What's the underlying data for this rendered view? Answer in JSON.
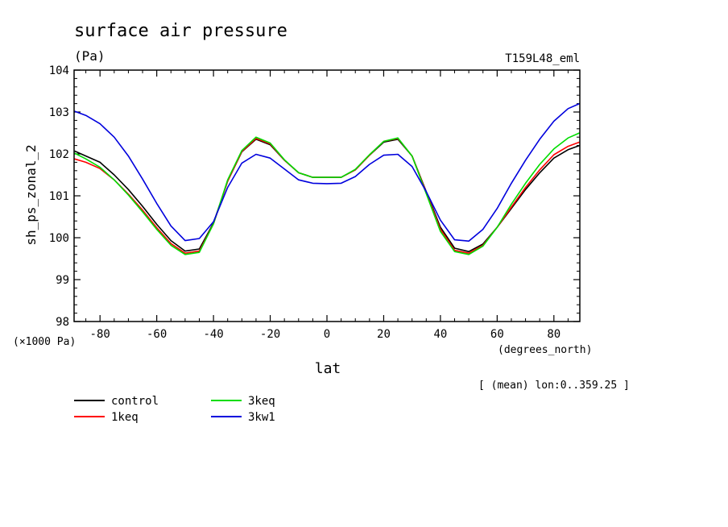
{
  "chart_data": {
    "type": "line",
    "title": "surface air pressure",
    "units": "(Pa)",
    "run_label": "T159L48_eml",
    "ylabel": "sh_ps_zonal_2",
    "yscale_note": "(×1000 Pa)",
    "xlabel": "lat",
    "xunits": "(degrees_north)",
    "averaging_note": "[ (mean) lon:0..359.25 ]",
    "xlim": [
      -89.14,
      89.14
    ],
    "ylim": [
      98,
      104
    ],
    "x_ticks": [
      -80,
      -60,
      -40,
      -20,
      0,
      20,
      40,
      60,
      80
    ],
    "y_ticks": [
      98,
      99,
      100,
      101,
      102,
      103,
      104
    ],
    "grid": false,
    "legend_position": "bottom-left",
    "x": [
      -89,
      -85,
      -80,
      -75,
      -70,
      -65,
      -60,
      -55,
      -50,
      -45,
      -40,
      -35,
      -30,
      -25,
      -20,
      -15,
      -10,
      -5,
      0,
      5,
      10,
      15,
      20,
      25,
      30,
      35,
      40,
      45,
      50,
      55,
      60,
      65,
      70,
      75,
      80,
      85,
      89
    ],
    "series": [
      {
        "name": "control",
        "color": "#000000",
        "values": [
          102.07,
          101.95,
          101.8,
          101.5,
          101.15,
          100.75,
          100.32,
          99.93,
          99.68,
          99.73,
          100.35,
          101.35,
          102.05,
          102.35,
          102.22,
          101.85,
          101.55,
          101.44,
          101.44,
          101.44,
          101.62,
          101.97,
          102.28,
          102.35,
          101.95,
          101.1,
          100.25,
          99.75,
          99.67,
          99.85,
          100.25,
          100.7,
          101.15,
          101.55,
          101.9,
          102.1,
          102.2
        ]
      },
      {
        "name": "1keq",
        "color": "#ff0000",
        "values": [
          101.88,
          101.8,
          101.65,
          101.38,
          101.04,
          100.66,
          100.24,
          99.86,
          99.63,
          99.68,
          100.33,
          101.35,
          102.06,
          102.37,
          102.24,
          101.85,
          101.55,
          101.44,
          101.44,
          101.44,
          101.62,
          101.97,
          102.3,
          102.37,
          101.95,
          101.08,
          100.2,
          99.7,
          99.63,
          99.82,
          100.25,
          100.73,
          101.2,
          101.62,
          101.98,
          102.18,
          102.28
        ]
      },
      {
        "name": "3keq",
        "color": "#00dd00",
        "values": [
          102.02,
          101.88,
          101.68,
          101.38,
          101.02,
          100.62,
          100.2,
          99.82,
          99.6,
          99.65,
          100.33,
          101.38,
          102.08,
          102.4,
          102.26,
          101.86,
          101.55,
          101.44,
          101.44,
          101.44,
          101.63,
          101.98,
          102.3,
          102.38,
          101.95,
          101.05,
          100.15,
          99.67,
          99.6,
          99.8,
          100.25,
          100.8,
          101.3,
          101.75,
          102.12,
          102.38,
          102.5
        ]
      },
      {
        "name": "3kw1",
        "color": "#0000dd",
        "values": [
          103.02,
          102.92,
          102.72,
          102.4,
          101.95,
          101.4,
          100.82,
          100.28,
          99.93,
          99.98,
          100.38,
          101.2,
          101.78,
          101.99,
          101.9,
          101.64,
          101.38,
          101.3,
          101.29,
          101.3,
          101.46,
          101.75,
          101.97,
          101.99,
          101.7,
          101.1,
          100.42,
          99.95,
          99.92,
          100.2,
          100.7,
          101.3,
          101.85,
          102.35,
          102.78,
          103.08,
          103.2
        ]
      }
    ]
  }
}
